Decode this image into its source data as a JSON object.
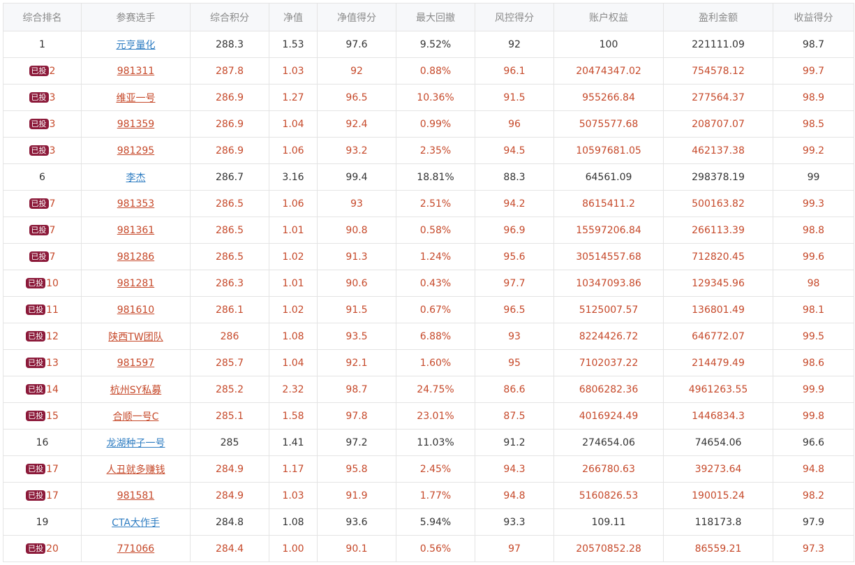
{
  "badge_label": "已投",
  "colors": {
    "link_blue": "#2f7dc2",
    "highlight_red": "#c6492a",
    "badge_bg": "#8c1a3a"
  },
  "table": {
    "headers": [
      "综合排名",
      "参赛选手",
      "综合积分",
      "净值",
      "净值得分",
      "最大回撤",
      "风控得分",
      "账户权益",
      "盈利金额",
      "收益得分"
    ],
    "rows": [
      {
        "rank": "1",
        "badge": false,
        "name": "元亨量化",
        "score": "288.3",
        "nav": "1.53",
        "nav_score": "97.6",
        "max_drawdown": "9.52%",
        "risk_score": "92",
        "equity": "100",
        "profit": "221111.09",
        "return_score": "98.7"
      },
      {
        "rank": "2",
        "badge": true,
        "name": "981311",
        "score": "287.8",
        "nav": "1.03",
        "nav_score": "92",
        "max_drawdown": "0.88%",
        "risk_score": "96.1",
        "equity": "20474347.02",
        "profit": "754578.12",
        "return_score": "99.7"
      },
      {
        "rank": "3",
        "badge": true,
        "name": "维亚一号",
        "score": "286.9",
        "nav": "1.27",
        "nav_score": "96.5",
        "max_drawdown": "10.36%",
        "risk_score": "91.5",
        "equity": "955266.84",
        "profit": "277564.37",
        "return_score": "98.9"
      },
      {
        "rank": "3",
        "badge": true,
        "name": "981359",
        "score": "286.9",
        "nav": "1.04",
        "nav_score": "92.4",
        "max_drawdown": "0.99%",
        "risk_score": "96",
        "equity": "5075577.68",
        "profit": "208707.07",
        "return_score": "98.5"
      },
      {
        "rank": "3",
        "badge": true,
        "name": "981295",
        "score": "286.9",
        "nav": "1.06",
        "nav_score": "93.2",
        "max_drawdown": "2.35%",
        "risk_score": "94.5",
        "equity": "10597681.05",
        "profit": "462137.38",
        "return_score": "99.2"
      },
      {
        "rank": "6",
        "badge": false,
        "name": "李杰",
        "score": "286.7",
        "nav": "3.16",
        "nav_score": "99.4",
        "max_drawdown": "18.81%",
        "risk_score": "88.3",
        "equity": "64561.09",
        "profit": "298378.19",
        "return_score": "99"
      },
      {
        "rank": "7",
        "badge": true,
        "name": "981353",
        "score": "286.5",
        "nav": "1.06",
        "nav_score": "93",
        "max_drawdown": "2.51%",
        "risk_score": "94.2",
        "equity": "8615411.2",
        "profit": "500163.82",
        "return_score": "99.3"
      },
      {
        "rank": "7",
        "badge": true,
        "name": "981361",
        "score": "286.5",
        "nav": "1.01",
        "nav_score": "90.8",
        "max_drawdown": "0.58%",
        "risk_score": "96.9",
        "equity": "15597206.84",
        "profit": "266113.39",
        "return_score": "98.8"
      },
      {
        "rank": "7",
        "badge": true,
        "name": "981286",
        "score": "286.5",
        "nav": "1.02",
        "nav_score": "91.3",
        "max_drawdown": "1.24%",
        "risk_score": "95.6",
        "equity": "30514557.68",
        "profit": "712820.45",
        "return_score": "99.6"
      },
      {
        "rank": "10",
        "badge": true,
        "name": "981281",
        "score": "286.3",
        "nav": "1.01",
        "nav_score": "90.6",
        "max_drawdown": "0.43%",
        "risk_score": "97.7",
        "equity": "10347093.86",
        "profit": "129345.96",
        "return_score": "98"
      },
      {
        "rank": "11",
        "badge": true,
        "name": "981610",
        "score": "286.1",
        "nav": "1.02",
        "nav_score": "91.5",
        "max_drawdown": "0.67%",
        "risk_score": "96.5",
        "equity": "5125007.57",
        "profit": "136801.49",
        "return_score": "98.1"
      },
      {
        "rank": "12",
        "badge": true,
        "name": "陕西TW团队",
        "score": "286",
        "nav": "1.08",
        "nav_score": "93.5",
        "max_drawdown": "6.88%",
        "risk_score": "93",
        "equity": "8224426.72",
        "profit": "646772.07",
        "return_score": "99.5"
      },
      {
        "rank": "13",
        "badge": true,
        "name": "981597",
        "score": "285.7",
        "nav": "1.04",
        "nav_score": "92.1",
        "max_drawdown": "1.60%",
        "risk_score": "95",
        "equity": "7102037.22",
        "profit": "214479.49",
        "return_score": "98.6"
      },
      {
        "rank": "14",
        "badge": true,
        "name": "杭州SY私募",
        "score": "285.2",
        "nav": "2.32",
        "nav_score": "98.7",
        "max_drawdown": "24.75%",
        "risk_score": "86.6",
        "equity": "6806282.36",
        "profit": "4961263.55",
        "return_score": "99.9"
      },
      {
        "rank": "15",
        "badge": true,
        "name": "合顺一号C",
        "score": "285.1",
        "nav": "1.58",
        "nav_score": "97.8",
        "max_drawdown": "23.01%",
        "risk_score": "87.5",
        "equity": "4016924.49",
        "profit": "1446834.3",
        "return_score": "99.8"
      },
      {
        "rank": "16",
        "badge": false,
        "name": "龙湖种子一号",
        "score": "285",
        "nav": "1.41",
        "nav_score": "97.2",
        "max_drawdown": "11.03%",
        "risk_score": "91.2",
        "equity": "274654.06",
        "profit": "74654.06",
        "return_score": "96.6"
      },
      {
        "rank": "17",
        "badge": true,
        "name": "人丑就多赚钱",
        "score": "284.9",
        "nav": "1.17",
        "nav_score": "95.8",
        "max_drawdown": "2.45%",
        "risk_score": "94.3",
        "equity": "266780.63",
        "profit": "39273.64",
        "return_score": "94.8"
      },
      {
        "rank": "17",
        "badge": true,
        "name": "981581",
        "score": "284.9",
        "nav": "1.03",
        "nav_score": "91.9",
        "max_drawdown": "1.77%",
        "risk_score": "94.8",
        "equity": "5160826.53",
        "profit": "190015.24",
        "return_score": "98.2"
      },
      {
        "rank": "19",
        "badge": false,
        "name": "CTA大作手",
        "score": "284.8",
        "nav": "1.08",
        "nav_score": "93.6",
        "max_drawdown": "5.94%",
        "risk_score": "93.3",
        "equity": "109.11",
        "profit": "118173.8",
        "return_score": "97.9"
      },
      {
        "rank": "20",
        "badge": true,
        "name": "771066",
        "score": "284.4",
        "nav": "1.00",
        "nav_score": "90.1",
        "max_drawdown": "0.56%",
        "risk_score": "97",
        "equity": "20570852.28",
        "profit": "86559.21",
        "return_score": "97.3"
      }
    ]
  }
}
